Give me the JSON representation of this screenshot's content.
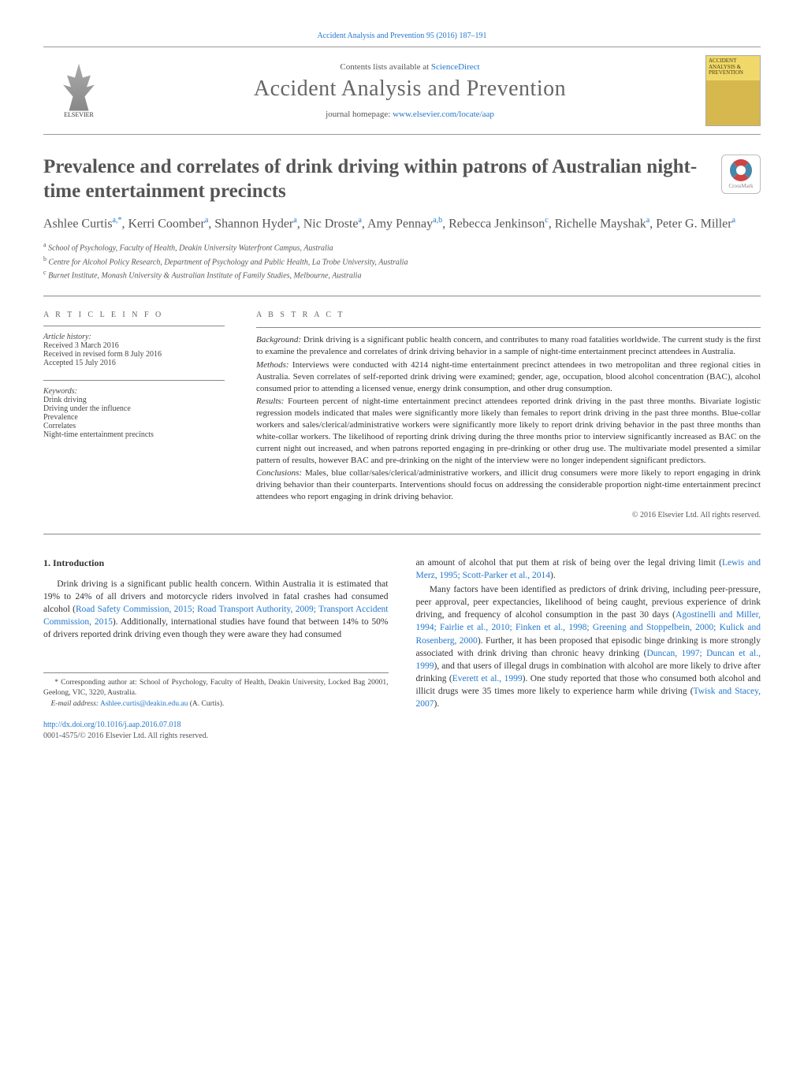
{
  "journal": {
    "citation_line": "Accident Analysis and Prevention 95 (2016) 187–191",
    "contents_prefix": "Contents lists available at ",
    "contents_link": "ScienceDirect",
    "title": "Accident Analysis and Prevention",
    "homepage_prefix": "journal homepage: ",
    "homepage_url": "www.elsevier.com/locate/aap",
    "publisher_name": "ELSEVIER",
    "cover_text": "ACCIDENT ANALYSIS & PREVENTION"
  },
  "article": {
    "title": "Prevalence and correlates of drink driving within patrons of Australian night-time entertainment precincts",
    "crossmark_label": "CrossMark",
    "authors_html": "Ashlee Curtis<sup>a,*</sup>, Kerri Coomber<sup>a</sup>, Shannon Hyder<sup>a</sup>, Nic Droste<sup>a</sup>, Amy Pennay<sup>a,b</sup>, Rebecca Jenkinson<sup>c</sup>, Richelle Mayshak<sup>a</sup>, Peter G. Miller<sup>a</sup>",
    "affiliations": [
      {
        "sup": "a",
        "text": "School of Psychology, Faculty of Health, Deakin University Waterfront Campus, Australia"
      },
      {
        "sup": "b",
        "text": "Centre for Alcohol Policy Research, Department of Psychology and Public Health, La Trobe University, Australia"
      },
      {
        "sup": "c",
        "text": "Burnet Institute, Monash University & Australian Institute of Family Studies, Melbourne, Australia"
      }
    ]
  },
  "meta": {
    "info_heading": "A R T I C L E   I N F O",
    "history_label": "Article history:",
    "history": [
      "Received 3 March 2016",
      "Received in revised form 8 July 2016",
      "Accepted 15 July 2016"
    ],
    "keywords_label": "Keywords:",
    "keywords": [
      "Drink driving",
      "Driving under the influence",
      "Prevalence",
      "Correlates",
      "Night-time entertainment precincts"
    ]
  },
  "abstract": {
    "heading": "A B S T R A C T",
    "segments": [
      {
        "label": "Background:",
        "text": "Drink driving is a significant public health concern, and contributes to many road fatalities worldwide. The current study is the first to examine the prevalence and correlates of drink driving behavior in a sample of night-time entertainment precinct attendees in Australia."
      },
      {
        "label": "Methods:",
        "text": "Interviews were conducted with 4214 night-time entertainment precinct attendees in two metropolitan and three regional cities in Australia. Seven correlates of self-reported drink driving were examined; gender, age, occupation, blood alcohol concentration (BAC), alcohol consumed prior to attending a licensed venue, energy drink consumption, and other drug consumption."
      },
      {
        "label": "Results:",
        "text": "Fourteen percent of night-time entertainment precinct attendees reported drink driving in the past three months. Bivariate logistic regression models indicated that males were significantly more likely than females to report drink driving in the past three months. Blue-collar workers and sales/clerical/administrative workers were significantly more likely to report drink driving behavior in the past three months than white-collar workers. The likelihood of reporting drink driving during the three months prior to interview significantly increased as BAC on the current night out increased, and when patrons reported engaging in pre-drinking or other drug use. The multivariate model presented a similar pattern of results, however BAC and pre-drinking on the night of the interview were no longer independent significant predictors."
      },
      {
        "label": "Conclusions:",
        "text": "Males, blue collar/sales/clerical/administrative workers, and illicit drug consumers were more likely to report engaging in drink driving behavior than their counterparts. Interventions should focus on addressing the considerable proportion night-time entertainment precinct attendees who report engaging in drink driving behavior."
      }
    ],
    "copyright": "© 2016 Elsevier Ltd. All rights reserved."
  },
  "body": {
    "section_number": "1.",
    "section_title": "Introduction",
    "left_para": "Drink driving is a significant public health concern. Within Australia it is estimated that 19% to 24% of all drivers and motorcycle riders involved in fatal crashes had consumed alcohol (<a>Road Safety Commission, 2015; Road Transport Authority, 2009; Transport Accident Commission, 2015</a>). Additionally, international studies have found that between 14% to 50% of drivers reported drink driving even though they were aware they had consumed",
    "right_para_1": "an amount of alcohol that put them at risk of being over the legal driving limit (<a>Lewis and Merz, 1995; Scott-Parker et al., 2014</a>).",
    "right_para_2": "Many factors have been identified as predictors of drink driving, including peer-pressure, peer approval, peer expectancies, likelihood of being caught, previous experience of drink driving, and frequency of alcohol consumption in the past 30 days (<a>Agostinelli and Miller, 1994; Fairlie et al., 2010; Finken et al., 1998; Greening and Stoppelbein, 2000; Kulick and Rosenberg, 2000</a>). Further, it has been proposed that episodic binge drinking is more strongly associated with drink driving than chronic heavy drinking (<a>Duncan, 1997; Duncan et al., 1999</a>), and that users of illegal drugs in combination with alcohol are more likely to drive after drinking (<a>Everett et al., 1999</a>). One study reported that those who consumed both alcohol and illicit drugs were 35 times more likely to experience harm while driving (<a>Twisk and Stacey, 2007</a>)."
  },
  "footnotes": {
    "corr": "* Corresponding author at: School of Psychology, Faculty of Health, Deakin University, Locked Bag 20001, Geelong, VIC, 3220, Australia.",
    "email_label": "E-mail address:",
    "email": "Ashlee.curtis@deakin.edu.au",
    "email_who": "(A. Curtis).",
    "doi": "http://dx.doi.org/10.1016/j.aap.2016.07.018",
    "issn": "0001-4575/© 2016 Elsevier Ltd. All rights reserved."
  },
  "colors": {
    "link": "#2277cc",
    "text": "#333333",
    "muted": "#666666",
    "rule": "#888888"
  },
  "typography": {
    "body_fontsize_pt": 9,
    "title_fontsize_pt": 19,
    "journal_title_fontsize_pt": 21
  }
}
